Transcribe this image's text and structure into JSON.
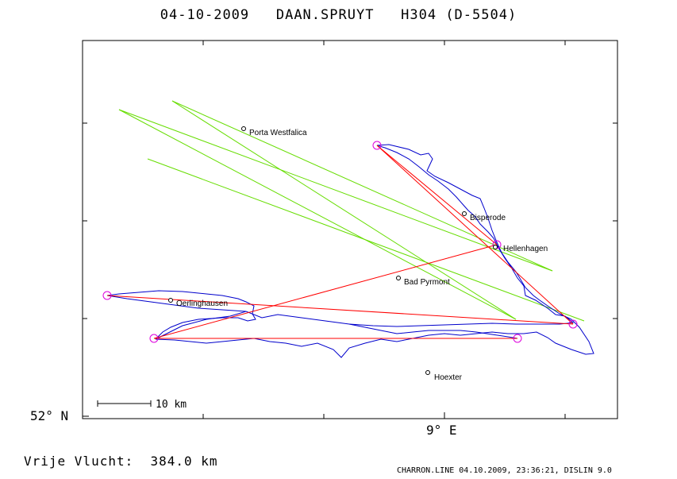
{
  "header": {
    "title": "04-10-2009   DAAN.SPRUYT   H304 (D-5504)"
  },
  "axes": {
    "lat_label": "52° N",
    "lon_label": "9° E"
  },
  "scale_bar": {
    "label": "10 km"
  },
  "places": [
    {
      "name": "Porta Westfalica"
    },
    {
      "name": "Bisperode"
    },
    {
      "name": "Hellenhagen"
    },
    {
      "name": "Bad Pyrmont"
    },
    {
      "name": "Oerlinghausen"
    },
    {
      "name": "Hoexter"
    }
  ],
  "summary": {
    "distance_text": "Vrije Vlucht:  384.0 km"
  },
  "footer": {
    "text": "CHARRON.LINE 04.10.2009, 23:36:21, DISLIN 9.0"
  },
  "colors": {
    "track": "#0000cc",
    "task_lines": "#ff0000",
    "turnpoints": "#dd00dd",
    "sector_lines": "#66dd00",
    "frame": "#000000"
  }
}
